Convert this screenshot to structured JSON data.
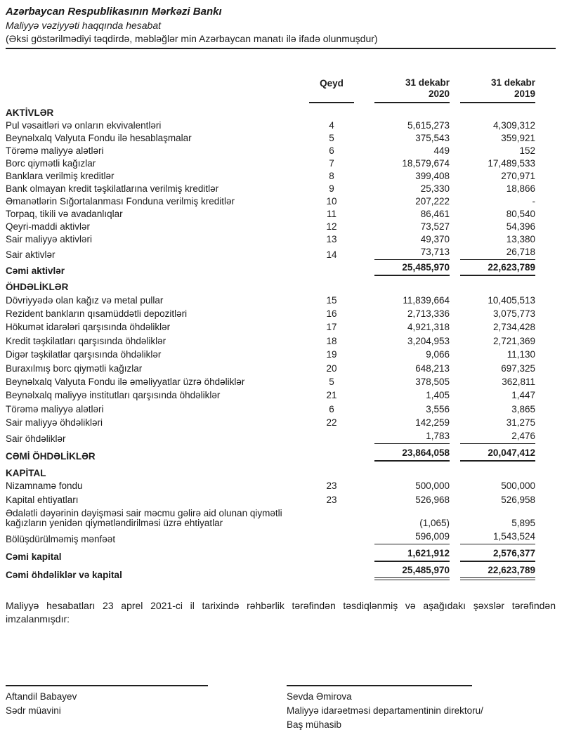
{
  "header": {
    "org": "Azərbaycan Respublikasının Mərkəzi Bankı",
    "report_title": "Maliyyə vəziyyəti haqqında hesabat",
    "unit_note": "(Əksi göstərilmədiyi təqdirdə, məbləğlər min Azərbaycan manatı ilə ifadə olunmuşdur)"
  },
  "table": {
    "columns": {
      "note_label": "Qeyd",
      "col_2020": {
        "line1": "31 dekabr",
        "line2": "2020"
      },
      "col_2019": {
        "line1": "31 dekabr",
        "line2": "2019"
      }
    },
    "sections": [
      {
        "title": "AKTİVLƏR",
        "rows": [
          {
            "label": "Pul vəsaitləri və onların ekvivalentləri",
            "note": "4",
            "v2020": "5,615,273",
            "v2019": "4,309,312"
          },
          {
            "label": "Beynəlxalq Valyuta Fondu ilə hesablaşmalar",
            "note": "5",
            "v2020": "375,543",
            "v2019": "359,921"
          },
          {
            "label": "Törəmə maliyyə alətləri",
            "note": "6",
            "v2020": "449",
            "v2019": "152"
          },
          {
            "label": "Borc qiymətli kağızlar",
            "note": "7",
            "v2020": "18,579,674",
            "v2019": "17,489,533"
          },
          {
            "label": "Banklara verilmiş kreditlər",
            "note": "8",
            "v2020": "399,408",
            "v2019": "270,971"
          },
          {
            "label": "Bank olmayan kredit təşkilatlarına verilmiş kreditlər",
            "note": "9",
            "v2020": "25,330",
            "v2019": "18,866"
          },
          {
            "label": "Əmanətlərin Sığortalanması Fonduna verilmiş kreditlər",
            "note": "10",
            "v2020": "207,222",
            "v2019": "-"
          },
          {
            "label": "Torpaq, tikili və avadanlıqlar",
            "note": "11",
            "v2020": "86,461",
            "v2019": "80,540"
          },
          {
            "label": "Qeyri-maddi aktivlər",
            "note": "12",
            "v2020": "73,527",
            "v2019": "54,396"
          },
          {
            "label": "Sair maliyyə aktivləri",
            "note": "13",
            "v2020": "49,370",
            "v2019": "13,380"
          },
          {
            "label": "Sair aktivlər",
            "note": "14",
            "v2020": "73,713",
            "v2019": "26,718"
          }
        ],
        "total": {
          "label": "Cəmi aktivlər",
          "v2020": "25,485,970",
          "v2019": "22,623,789"
        }
      },
      {
        "title": "ÖHDƏLİKLƏR",
        "rows": [
          {
            "label": "Dövriyyədə olan kağız və metal pullar",
            "note": "15",
            "v2020": "11,839,664",
            "v2019": "10,405,513"
          },
          {
            "label": "Rezident bankların qısamüddətli depozitləri",
            "note": "16",
            "v2020": "2,713,336",
            "v2019": "3,075,773"
          },
          {
            "label": "Hökumət idarələri qarşısında öhdəliklər",
            "note": "17",
            "v2020": "4,921,318",
            "v2019": "2,734,428"
          },
          {
            "label": "Kredit təşkilatları qarşısında öhdəliklər",
            "note": "18",
            "v2020": "3,204,953",
            "v2019": "2,721,369"
          },
          {
            "label": "Digər təşkilatlar qarşısında öhdəliklər",
            "note": "19",
            "v2020": "9,066",
            "v2019": "11,130"
          },
          {
            "label": "Buraxılmış borc qiymətli kağızlar",
            "note": "20",
            "v2020": "648,213",
            "v2019": "697,325"
          },
          {
            "label": "Beynəlxalq Valyuta Fondu ilə əməliyyatlar üzrə öhdəliklər",
            "note": "5",
            "v2020": "378,505",
            "v2019": "362,811"
          },
          {
            "label": "Beynəlxalq maliyyə institutları qarşısında öhdəliklər",
            "note": "21",
            "v2020": "1,405",
            "v2019": "1,447"
          },
          {
            "label": "Törəmə maliyyə alətləri",
            "note": "6",
            "v2020": "3,556",
            "v2019": "3,865"
          },
          {
            "label": "Sair maliyyə öhdəlikləri",
            "note": "22",
            "v2020": "142,259",
            "v2019": "31,275"
          },
          {
            "label": "Sair öhdəliklər",
            "note": "",
            "v2020": "1,783",
            "v2019": "2,476"
          }
        ],
        "total": {
          "label": "CƏMİ ÖHDƏLİKLƏR",
          "v2020": "23,864,058",
          "v2019": "20,047,412"
        }
      },
      {
        "title": "KAPİTAL",
        "rows": [
          {
            "label": "Nizamnamə fondu",
            "note": "23",
            "v2020": "500,000",
            "v2019": "500,000"
          },
          {
            "label": "Kapital ehtiyatları",
            "note": "23",
            "v2020": "526,968",
            "v2019": "526,958"
          },
          {
            "label": "Ədalətli dəyərinin dəyişməsi sair məcmu gəlirə aid olunan qiymətli kağızların yenidən qiymətləndirilməsi üzrə ehtiyatlar",
            "note": "",
            "v2020": "(1,065)",
            "v2019": "5,895"
          },
          {
            "label": "Bölüşdürülməmiş mənfəət",
            "note": "",
            "v2020": "596,009",
            "v2019": "1,543,524"
          }
        ],
        "total": {
          "label": "Cəmi kapital",
          "v2020": "1,621,912",
          "v2019": "2,576,377"
        }
      }
    ],
    "grand_total": {
      "label": "Cəmi öhdəliklər və kapital",
      "v2020": "25,485,970",
      "v2019": "22,623,789"
    }
  },
  "approval_note": "Maliyyə hesabatları 23 aprel 2021-ci il tarixində rəhbərlik tərəfindən təsdiqlənmiş və aşağıdakı şəxslər tərəfindən imzalanmışdır:",
  "signatories": [
    {
      "name": "Aftandil Babayev",
      "title1": "Sədr müavini",
      "title2": ""
    },
    {
      "name": "Sevda Əmirova",
      "title1": "Maliyyə idarəetməsi departamentinin direktoru/",
      "title2": "Baş mühasib"
    }
  ]
}
